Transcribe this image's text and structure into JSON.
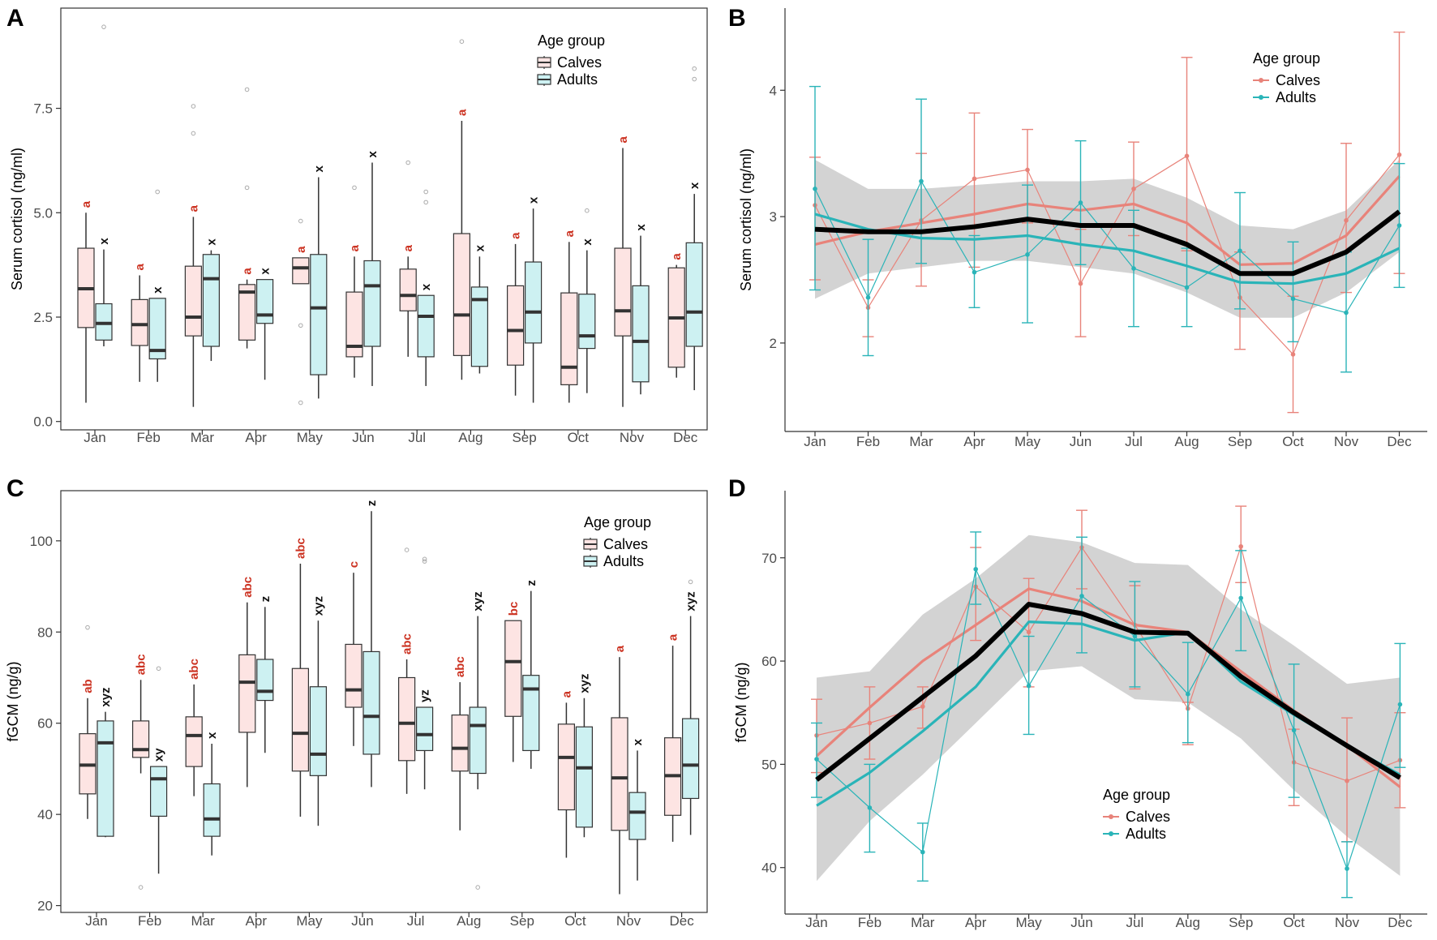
{
  "figure": {
    "panel_labels": [
      "A",
      "B",
      "C",
      "D"
    ],
    "colors": {
      "calves": "#e8837a",
      "adults": "#2ab4b8",
      "calves_fill": "#fde4e3",
      "adults_fill": "#cdf1f2",
      "overall": "#000000",
      "ribbon": "#d3d3d3",
      "calf_letter": "#cc3322",
      "adult_letter": "#111111",
      "outlier": "#aaaaaa"
    }
  },
  "chart_data": [
    {
      "panel": "A",
      "type": "box",
      "ylabel": "Serum cortisol (ng/ml)",
      "xlabel": "",
      "ylim": [
        -0.2,
        9.9
      ],
      "yticks": [
        0.0,
        2.5,
        5.0,
        7.5
      ],
      "ytick_labels": [
        "0.0",
        "2.5",
        "5.0",
        "7.5"
      ],
      "categories": [
        "Jan",
        "Feb",
        "Mar",
        "Apr",
        "May",
        "Jun",
        "Jul",
        "Aug",
        "Sep",
        "Oct",
        "Nov",
        "Dec"
      ],
      "legend": {
        "title": "Age group",
        "entries": [
          "Calves",
          "Adults"
        ],
        "position": "top-right"
      },
      "series": [
        {
          "name": "Calves",
          "boxes": [
            {
              "min": 0.45,
              "q1": 2.25,
              "median": 3.18,
              "q3": 4.15,
              "max": 5.0,
              "outliers": []
            },
            {
              "min": 0.95,
              "q1": 1.82,
              "median": 2.32,
              "q3": 2.92,
              "max": 3.5,
              "outliers": []
            },
            {
              "min": 0.35,
              "q1": 2.05,
              "median": 2.5,
              "q3": 3.72,
              "max": 4.9,
              "outliers": [
                6.9,
                7.55
              ]
            },
            {
              "min": 1.75,
              "q1": 1.95,
              "median": 3.1,
              "q3": 3.28,
              "max": 3.4,
              "outliers": [
                5.6,
                7.95
              ]
            },
            {
              "min": 3.3,
              "q1": 3.3,
              "median": 3.68,
              "q3": 3.92,
              "max": 3.92,
              "outliers": [
                4.8,
                2.3,
                0.45
              ]
            },
            {
              "min": 1.05,
              "q1": 1.55,
              "median": 1.8,
              "q3": 3.1,
              "max": 3.95,
              "outliers": [
                5.6
              ]
            },
            {
              "min": 1.55,
              "q1": 2.65,
              "median": 3.02,
              "q3": 3.65,
              "max": 3.95,
              "outliers": [
                6.2
              ]
            },
            {
              "min": 1.0,
              "q1": 1.58,
              "median": 2.55,
              "q3": 4.5,
              "max": 7.2,
              "outliers": [
                9.1
              ]
            },
            {
              "min": 0.62,
              "q1": 1.35,
              "median": 2.18,
              "q3": 3.25,
              "max": 4.25,
              "outliers": []
            },
            {
              "min": 0.45,
              "q1": 0.88,
              "median": 1.3,
              "q3": 3.08,
              "max": 4.3,
              "outliers": []
            },
            {
              "min": 0.35,
              "q1": 2.05,
              "median": 2.65,
              "q3": 4.15,
              "max": 6.55,
              "outliers": []
            },
            {
              "min": 1.05,
              "q1": 1.3,
              "median": 2.48,
              "q3": 3.68,
              "max": 3.75,
              "outliers": []
            }
          ],
          "letters": [
            "a",
            "a",
            "a",
            "a",
            "a",
            "a",
            "a",
            "a",
            "a",
            "a",
            "a",
            "a"
          ]
        },
        {
          "name": "Adults",
          "boxes": [
            {
              "min": 1.8,
              "q1": 1.95,
              "median": 2.35,
              "q3": 2.82,
              "max": 4.12,
              "outliers": [
                9.45
              ]
            },
            {
              "min": 0.95,
              "q1": 1.5,
              "median": 1.7,
              "q3": 2.95,
              "max": 2.95,
              "outliers": [
                5.5
              ]
            },
            {
              "min": 1.45,
              "q1": 1.8,
              "median": 3.42,
              "q3": 4.0,
              "max": 4.1,
              "outliers": []
            },
            {
              "min": 1.0,
              "q1": 2.35,
              "median": 2.55,
              "q3": 3.4,
              "max": 3.4,
              "outliers": []
            },
            {
              "min": 0.55,
              "q1": 1.12,
              "median": 2.72,
              "q3": 4.0,
              "max": 5.85,
              "outliers": []
            },
            {
              "min": 0.85,
              "q1": 1.8,
              "median": 3.25,
              "q3": 3.85,
              "max": 6.2,
              "outliers": []
            },
            {
              "min": 0.85,
              "q1": 1.55,
              "median": 2.52,
              "q3": 3.02,
              "max": 3.02,
              "outliers": [
                5.5,
                5.25
              ]
            },
            {
              "min": 1.15,
              "q1": 1.32,
              "median": 2.92,
              "q3": 3.22,
              "max": 3.95,
              "outliers": []
            },
            {
              "min": 0.45,
              "q1": 1.88,
              "median": 2.62,
              "q3": 3.82,
              "max": 5.1,
              "outliers": []
            },
            {
              "min": 0.68,
              "q1": 1.75,
              "median": 2.05,
              "q3": 3.05,
              "max": 4.1,
              "outliers": [
                5.05
              ]
            },
            {
              "min": 0.65,
              "q1": 0.95,
              "median": 1.92,
              "q3": 3.25,
              "max": 4.45,
              "outliers": []
            },
            {
              "min": 0.75,
              "q1": 1.8,
              "median": 2.62,
              "q3": 4.28,
              "max": 5.45,
              "outliers": [
                8.45,
                8.2
              ]
            }
          ],
          "letters": [
            "x",
            "x",
            "x",
            "x",
            "x",
            "x",
            "x",
            "x",
            "x",
            "x",
            "x",
            "x"
          ]
        }
      ]
    },
    {
      "panel": "B",
      "type": "line",
      "ylabel": "Serum cortisol (ng/ml)",
      "xlabel": "",
      "ylim": [
        1.3,
        4.65
      ],
      "yticks": [
        2,
        3,
        4
      ],
      "ytick_labels": [
        "2",
        "3",
        "4"
      ],
      "x": [
        "Jan",
        "Feb",
        "Mar",
        "Apr",
        "May",
        "Jun",
        "Jul",
        "Aug",
        "Sep",
        "Oct",
        "Nov",
        "Dec"
      ],
      "legend": {
        "title": "Age group",
        "entries": [
          "Calves",
          "Adults"
        ],
        "position": "top-right"
      },
      "ribbon": {
        "lower": [
          2.35,
          2.55,
          2.6,
          2.65,
          2.65,
          2.6,
          2.55,
          2.4,
          2.2,
          2.2,
          2.4,
          2.72
        ],
        "upper": [
          3.45,
          3.22,
          3.22,
          3.25,
          3.28,
          3.28,
          3.3,
          3.15,
          2.93,
          2.9,
          3.05,
          3.45
        ]
      },
      "overall": [
        2.9,
        2.88,
        2.88,
        2.92,
        2.98,
        2.93,
        2.93,
        2.78,
        2.55,
        2.55,
        2.72,
        3.04
      ],
      "series": [
        {
          "name": "Calves",
          "mean": [
            3.09,
            2.28,
            2.97,
            3.3,
            3.37,
            2.47,
            3.22,
            3.48,
            2.36,
            1.91,
            2.97,
            3.49
          ],
          "err_low": [
            2.5,
            2.05,
            2.45,
            2.6,
            2.95,
            2.05,
            2.85,
            2.73,
            1.95,
            1.45,
            2.4,
            2.55
          ],
          "err_high": [
            3.47,
            2.5,
            3.5,
            3.82,
            3.69,
            2.9,
            3.59,
            4.26,
            2.72,
            2.37,
            3.58,
            4.46
          ],
          "trend": [
            2.78,
            2.88,
            2.95,
            3.02,
            3.1,
            3.05,
            3.1,
            2.95,
            2.62,
            2.63,
            2.85,
            3.32
          ]
        },
        {
          "name": "Adults",
          "mean": [
            3.22,
            2.36,
            3.28,
            2.56,
            2.7,
            3.11,
            2.59,
            2.44,
            2.73,
            2.35,
            2.24,
            2.93
          ],
          "err_low": [
            2.42,
            1.9,
            2.63,
            2.28,
            2.16,
            2.62,
            2.13,
            2.13,
            2.27,
            2.01,
            1.77,
            2.44
          ],
          "err_high": [
            4.03,
            2.82,
            3.93,
            2.85,
            3.25,
            3.6,
            3.05,
            2.75,
            3.19,
            2.8,
            2.72,
            3.42
          ],
          "trend": [
            3.02,
            2.9,
            2.83,
            2.82,
            2.85,
            2.78,
            2.73,
            2.61,
            2.48,
            2.47,
            2.55,
            2.75
          ]
        }
      ]
    },
    {
      "panel": "C",
      "type": "box",
      "ylabel": "fGCM (ng/g)",
      "xlabel": "",
      "ylim": [
        18.5,
        111
      ],
      "yticks": [
        20,
        40,
        60,
        80,
        100
      ],
      "ytick_labels": [
        "20",
        "40",
        "60",
        "80",
        "100"
      ],
      "categories": [
        "Jan",
        "Feb",
        "Mar",
        "Apr",
        "May",
        "Jun",
        "Jul",
        "Aug",
        "Sep",
        "Oct",
        "Nov",
        "Dec"
      ],
      "legend": {
        "title": "Age group",
        "entries": [
          "Calves",
          "Adults"
        ],
        "position": "top-right"
      },
      "series": [
        {
          "name": "Calves",
          "boxes": [
            {
              "min": 39,
              "q1": 44.5,
              "median": 50.8,
              "q3": 57.7,
              "max": 65.5,
              "outliers": [
                81
              ]
            },
            {
              "min": 49,
              "q1": 52.5,
              "median": 54.2,
              "q3": 60.5,
              "max": 69.5,
              "outliers": [
                24
              ]
            },
            {
              "min": 44,
              "q1": 50.5,
              "median": 57.3,
              "q3": 61.4,
              "max": 68.5,
              "outliers": []
            },
            {
              "min": 46,
              "q1": 58,
              "median": 69,
              "q3": 75,
              "max": 86.5,
              "outliers": []
            },
            {
              "min": 39.5,
              "q1": 49.5,
              "median": 57.8,
              "q3": 72,
              "max": 95,
              "outliers": []
            },
            {
              "min": 55,
              "q1": 63.5,
              "median": 67.3,
              "q3": 77.3,
              "max": 93,
              "outliers": []
            },
            {
              "min": 44.5,
              "q1": 51.8,
              "median": 60,
              "q3": 70,
              "max": 74,
              "outliers": [
                98
              ]
            },
            {
              "min": 36.5,
              "q1": 49.5,
              "median": 54.5,
              "q3": 61.8,
              "max": 69,
              "outliers": []
            },
            {
              "min": 51.5,
              "q1": 61.5,
              "median": 73.5,
              "q3": 82.5,
              "max": 82.5,
              "outliers": []
            },
            {
              "min": 30.5,
              "q1": 41,
              "median": 52.5,
              "q3": 59.8,
              "max": 64.5,
              "outliers": []
            },
            {
              "min": 22.5,
              "q1": 36.5,
              "median": 48,
              "q3": 61.2,
              "max": 74.5,
              "outliers": []
            },
            {
              "min": 34,
              "q1": 39.8,
              "median": 48.5,
              "q3": 56.8,
              "max": 77,
              "outliers": []
            }
          ],
          "letters": [
            "ab",
            "abc",
            "abc",
            "abc",
            "abc",
            "c",
            "abc",
            "abc",
            "bc",
            "a",
            "a",
            "a"
          ]
        },
        {
          "name": "Adults",
          "boxes": [
            {
              "min": 35,
              "q1": 35.2,
              "median": 55.7,
              "q3": 60.5,
              "max": 62.5,
              "outliers": []
            },
            {
              "min": 27,
              "q1": 39.6,
              "median": 47.8,
              "q3": 50.5,
              "max": 50.5,
              "outliers": [
                72
              ]
            },
            {
              "min": 31,
              "q1": 35.2,
              "median": 39,
              "q3": 46.7,
              "max": 55.5,
              "outliers": []
            },
            {
              "min": 53.5,
              "q1": 65,
              "median": 67,
              "q3": 74,
              "max": 85.5,
              "outliers": []
            },
            {
              "min": 37.5,
              "q1": 48.5,
              "median": 53.2,
              "q3": 68,
              "max": 82.5,
              "outliers": []
            },
            {
              "min": 46,
              "q1": 53.2,
              "median": 61.5,
              "q3": 75.7,
              "max": 106.5,
              "outliers": []
            },
            {
              "min": 45.5,
              "q1": 54,
              "median": 57.5,
              "q3": 63.5,
              "max": 63.5,
              "outliers": [
                96,
                95.5
              ]
            },
            {
              "min": 45.5,
              "q1": 49,
              "median": 59.5,
              "q3": 63.5,
              "max": 83.5,
              "outliers": [
                24
              ]
            },
            {
              "min": 50,
              "q1": 54,
              "median": 67.5,
              "q3": 70.5,
              "max": 89,
              "outliers": []
            },
            {
              "min": 35,
              "q1": 37.2,
              "median": 50.2,
              "q3": 59.2,
              "max": 65.5,
              "outliers": []
            },
            {
              "min": 25.5,
              "q1": 34.5,
              "median": 40.5,
              "q3": 44.8,
              "max": 54,
              "outliers": []
            },
            {
              "min": 35.5,
              "q1": 43.5,
              "median": 50.8,
              "q3": 61,
              "max": 83.5,
              "outliers": [
                91
              ]
            }
          ],
          "letters": [
            "xyz",
            "xy",
            "x",
            "z",
            "xyz",
            "z",
            "yz",
            "xyz",
            "z",
            "xyz",
            "x",
            "xyz"
          ]
        }
      ]
    },
    {
      "panel": "D",
      "type": "line",
      "ylabel": "fGCM (ng/g)",
      "xlabel": "",
      "ylim": [
        35.5,
        76.5
      ],
      "yticks": [
        40,
        50,
        60,
        70
      ],
      "ytick_labels": [
        "40",
        "50",
        "60",
        "70"
      ],
      "x": [
        "Jan",
        "Feb",
        "Mar",
        "Apr",
        "May",
        "Jun",
        "Jul",
        "Aug",
        "Sep",
        "Oct",
        "Nov",
        "Dec"
      ],
      "legend": {
        "title": "Age group",
        "entries": [
          "Calves",
          "Adults"
        ],
        "position": "bottom-center"
      },
      "ribbon": {
        "lower": [
          38.7,
          44.5,
          49,
          54,
          59,
          59.5,
          56.3,
          56,
          52.5,
          47.5,
          43,
          39.2
        ],
        "upper": [
          58.4,
          59,
          64.5,
          68,
          72.2,
          71.5,
          69.5,
          69.3,
          65,
          61.5,
          57.8,
          58.4
        ]
      },
      "overall": [
        48.5,
        52.5,
        56.5,
        60.5,
        65.5,
        64.6,
        62.8,
        62.7,
        58.5,
        55,
        51.8,
        48.7
      ],
      "series": [
        {
          "name": "Calves",
          "mean": [
            52.8,
            54,
            55.6,
            67.2,
            62.8,
            71,
            63.5,
            55.4,
            71.1,
            50.2,
            48.4,
            50.4
          ],
          "err_low": [
            49.2,
            50.5,
            53.5,
            62,
            57.5,
            67,
            57.3,
            51.9,
            67.6,
            46,
            42.5,
            45.8
          ],
          "err_high": [
            56.3,
            57.5,
            57.5,
            71,
            68,
            74.6,
            67.3,
            56,
            75,
            53.4,
            54.5,
            55
          ],
          "trend": [
            50.8,
            55.5,
            60,
            63.5,
            67,
            65.8,
            63.5,
            62.8,
            59,
            55.2,
            51.8,
            47.8
          ]
        },
        {
          "name": "Adults",
          "mean": [
            50.5,
            45.8,
            41.5,
            68.9,
            57.6,
            66.3,
            62.4,
            56.8,
            66.1,
            53.3,
            39.9,
            55.8
          ],
          "err_low": [
            46.8,
            41.5,
            38.7,
            65.5,
            52.9,
            60.8,
            57.5,
            52.1,
            61,
            46.8,
            37.1,
            49.7
          ],
          "err_high": [
            54,
            50,
            44.3,
            72.5,
            62.4,
            72,
            67.7,
            61.8,
            70.7,
            59.7,
            42.5,
            61.7
          ],
          "trend": [
            46,
            49.2,
            53.2,
            57.5,
            63.8,
            63.6,
            62,
            62.8,
            58,
            54.8,
            51.8,
            49
          ]
        }
      ]
    }
  ]
}
